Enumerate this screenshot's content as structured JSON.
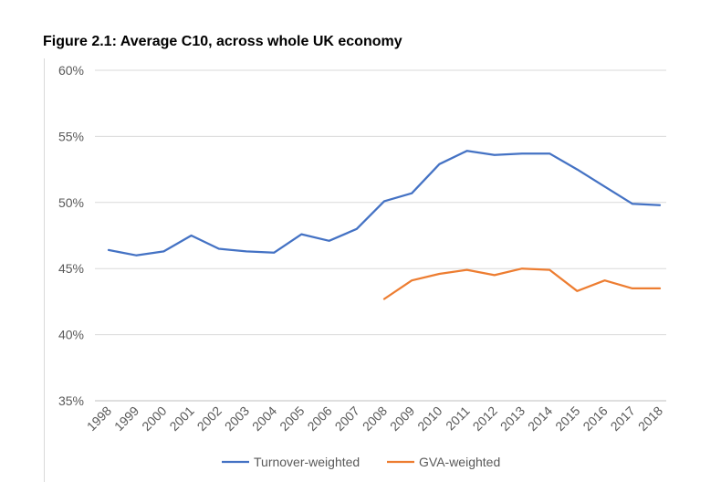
{
  "title": "Figure 2.1: Average C10, across whole UK economy",
  "chart_data": {
    "type": "line",
    "title": "Figure 2.1: Average C10, across whole UK economy",
    "xlabel": "",
    "ylabel": "",
    "x": [
      "1998",
      "1999",
      "2000",
      "2001",
      "2002",
      "2003",
      "2004",
      "2005",
      "2006",
      "2007",
      "2008",
      "2009",
      "2010",
      "2011",
      "2012",
      "2013",
      "2014",
      "2015",
      "2016",
      "2017",
      "2018"
    ],
    "ylim": [
      35,
      60
    ],
    "yticks": [
      "35%",
      "40%",
      "45%",
      "50%",
      "55%",
      "60%"
    ],
    "grid": "horizontal",
    "legend_position": "bottom",
    "series": [
      {
        "name": "Turnover-weighted",
        "color": "#4472c4",
        "values": [
          46.4,
          46.0,
          46.3,
          47.5,
          46.5,
          46.3,
          46.2,
          47.6,
          47.1,
          48.0,
          50.1,
          50.7,
          52.9,
          53.9,
          53.6,
          53.7,
          53.7,
          52.5,
          51.2,
          49.9,
          49.8
        ]
      },
      {
        "name": "GVA-weighted",
        "color": "#ed7d31",
        "values": [
          null,
          null,
          null,
          null,
          null,
          null,
          null,
          null,
          null,
          null,
          42.7,
          44.1,
          44.6,
          44.9,
          44.5,
          45.0,
          44.9,
          43.3,
          44.1,
          43.5,
          43.5
        ]
      }
    ]
  }
}
